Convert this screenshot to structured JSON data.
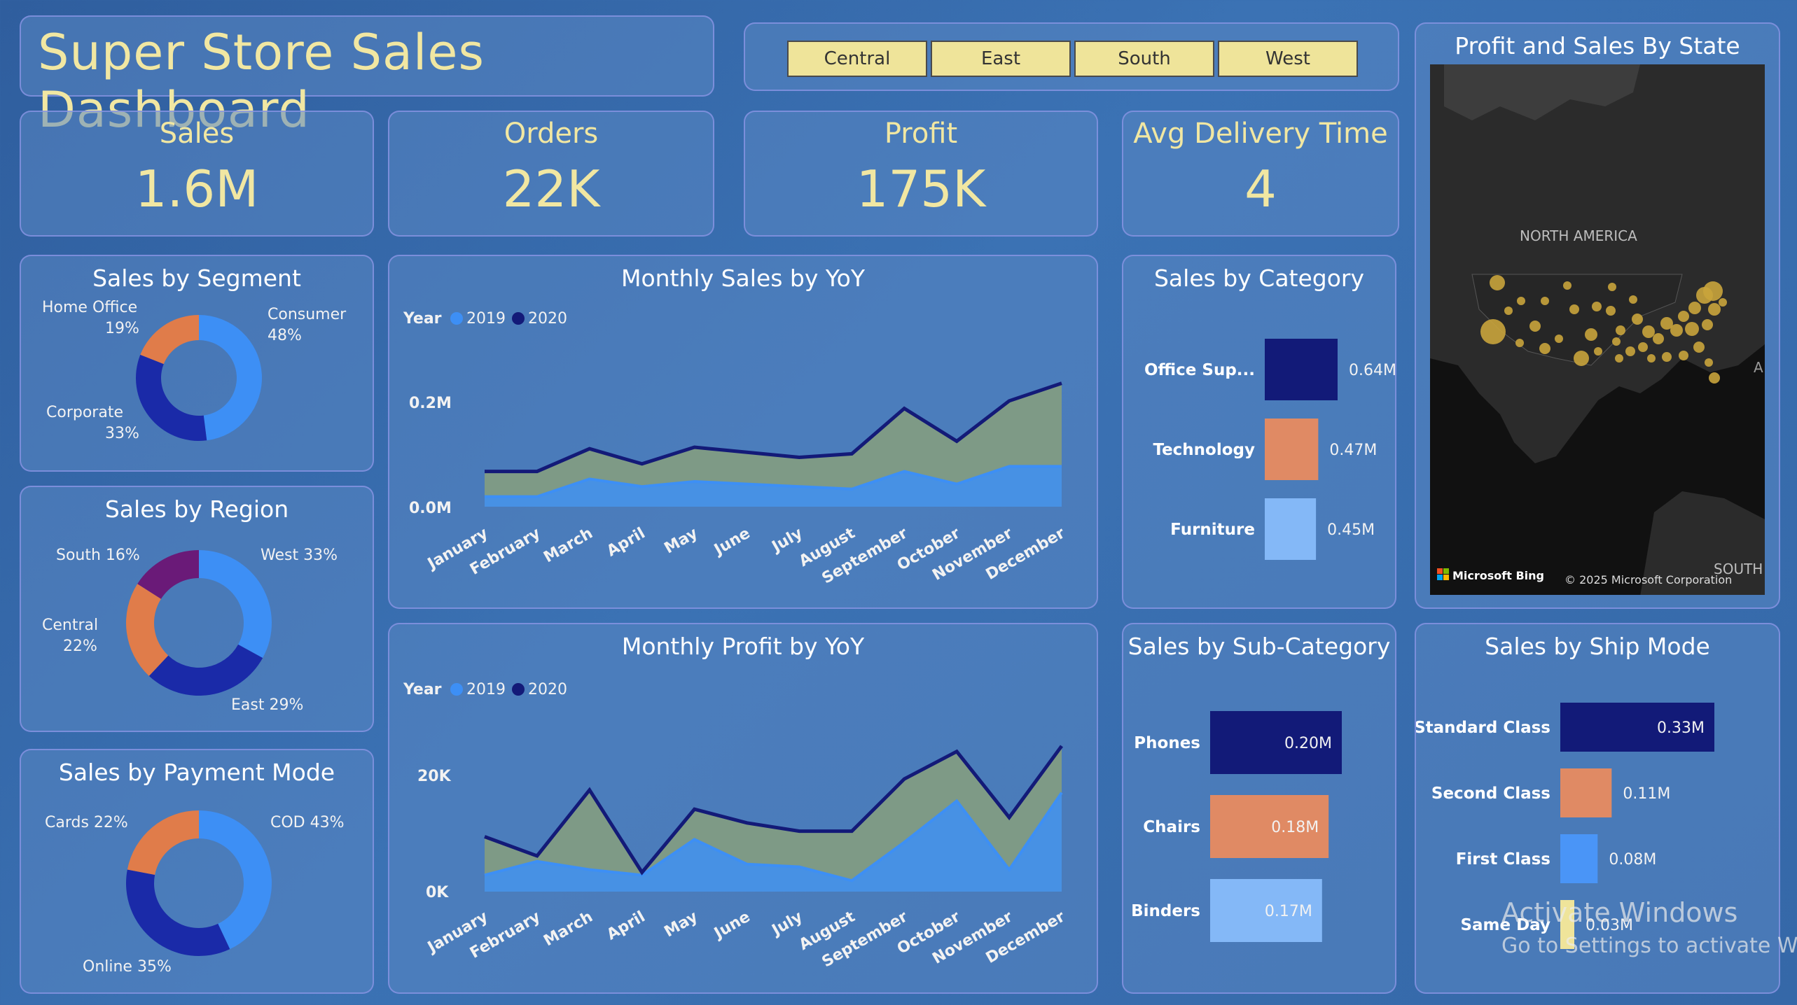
{
  "title": "Super Store Sales Dashboard",
  "slicer": [
    "Central",
    "East",
    "South",
    "West"
  ],
  "kpis": [
    {
      "label": "Sales",
      "value": "1.6M"
    },
    {
      "label": "Orders",
      "value": "22K"
    },
    {
      "label": "Profit",
      "value": "175K"
    },
    {
      "label": "Avg Delivery Time",
      "value": "4"
    }
  ],
  "segment": {
    "title": "Sales by Segment",
    "slices": [
      {
        "name": "Consumer",
        "pct": "48%",
        "value": 48,
        "color": "#3d8ff5"
      },
      {
        "name": "Corporate",
        "pct": "33%",
        "value": 33,
        "color": "#1a2aa8"
      },
      {
        "name": "Home Office",
        "pct": "19%",
        "value": 19,
        "color": "#e07c4a"
      }
    ]
  },
  "region": {
    "title": "Sales by Region",
    "slices": [
      {
        "name": "West",
        "label": "West 33%",
        "value": 33,
        "color": "#3d8ff5"
      },
      {
        "name": "East",
        "label": "East 29%",
        "value": 29,
        "color": "#1a2aa8"
      },
      {
        "name": "Central",
        "label": "Central 22%",
        "value": 22,
        "color": "#e07c4a"
      },
      {
        "name": "South",
        "label": "South 16%",
        "value": 16,
        "color": "#6a1a78"
      }
    ],
    "central_name": "Central",
    "central_pct": "22%"
  },
  "payment": {
    "title": "Sales by Payment Mode",
    "slices": [
      {
        "name": "COD",
        "label": "COD 43%",
        "value": 43,
        "color": "#3d8ff5"
      },
      {
        "name": "Online",
        "label": "Online 35%",
        "value": 35,
        "color": "#1a2aa8"
      },
      {
        "name": "Cards",
        "label": "Cards 22%",
        "value": 22,
        "color": "#e07c4a"
      }
    ]
  },
  "monthly_sales": {
    "title": "Monthly Sales by YoY",
    "legend_title": "Year",
    "ytick_labels": [
      "0.2M",
      "0.0M"
    ]
  },
  "monthly_profit": {
    "title": "Monthly Profit by YoY",
    "legend_title": "Year",
    "ytick_labels": [
      "20K",
      "0K"
    ]
  },
  "category": {
    "title": "Sales by Category"
  },
  "subcategory": {
    "title": "Sales by Sub-Category"
  },
  "shipmode": {
    "title": "Sales by Ship Mode"
  },
  "map": {
    "title": "Profit and Sales By State",
    "label_na": "NORTH AMERICA",
    "label_south": "SOUTH",
    "label_a": "A",
    "bing": "Microsoft Bing",
    "copyright": "© 2025 Microsoft Corporation"
  },
  "watermark": {
    "line1": "Activate Windows",
    "line2": "Go to Settings to activate Windows."
  },
  "colors": {
    "y2019": "#3d8ff5",
    "y2020": "#131a78",
    "area_fill": "#7e9a86",
    "navy": "#121a78",
    "orange": "#e08a64",
    "light_blue": "#84b8f7",
    "blue": "#4a95f7",
    "yellow": "#efe49a"
  },
  "chart_data": [
    {
      "type": "area",
      "title": "Monthly Sales by YoY",
      "categories": [
        "January",
        "February",
        "March",
        "April",
        "May",
        "June",
        "July",
        "August",
        "September",
        "October",
        "November",
        "December"
      ],
      "series": [
        {
          "name": "2019",
          "values": [
            0.02,
            0.02,
            0.055,
            0.04,
            0.05,
            0.045,
            0.04,
            0.035,
            0.07,
            0.045,
            0.08,
            0.08
          ]
        },
        {
          "name": "2020",
          "values": [
            0.07,
            0.07,
            0.115,
            0.085,
            0.118,
            0.108,
            0.098,
            0.105,
            0.195,
            0.13,
            0.21,
            0.245
          ]
        }
      ],
      "ylim": [
        0,
        0.25
      ],
      "yticks": [
        0.0,
        0.2
      ]
    },
    {
      "type": "area",
      "title": "Monthly Profit by YoY",
      "categories": [
        "January",
        "February",
        "March",
        "April",
        "May",
        "June",
        "July",
        "August",
        "September",
        "October",
        "November",
        "December"
      ],
      "series": [
        {
          "name": "2019",
          "values": [
            3000,
            5500,
            4000,
            3000,
            9500,
            5000,
            4500,
            2000,
            9000,
            16500,
            4000,
            18000
          ]
        },
        {
          "name": "2020",
          "values": [
            10000,
            6500,
            18500,
            3500,
            15000,
            12500,
            11000,
            11000,
            20500,
            25500,
            13500,
            26500
          ]
        }
      ],
      "ylim": [
        0,
        27000
      ],
      "yticks": [
        0,
        20000
      ]
    },
    {
      "type": "bar",
      "title": "Sales by Category",
      "categories": [
        "Office Sup...",
        "Technology",
        "Furniture"
      ],
      "values": [
        0.64,
        0.47,
        0.45
      ],
      "labels": [
        "0.64M",
        "0.47M",
        "0.45M"
      ]
    },
    {
      "type": "bar",
      "title": "Sales by Sub-Category",
      "categories": [
        "Phones",
        "Chairs",
        "Binders"
      ],
      "values": [
        0.2,
        0.18,
        0.17
      ],
      "labels": [
        "0.20M",
        "0.18M",
        "0.17M"
      ]
    },
    {
      "type": "bar",
      "title": "Sales by Ship Mode",
      "categories": [
        "Standard Class",
        "Second Class",
        "First Class",
        "Same Day"
      ],
      "values": [
        0.33,
        0.11,
        0.08,
        0.03
      ],
      "labels": [
        "0.33M",
        "0.11M",
        "0.08M",
        "0.03M"
      ]
    }
  ]
}
